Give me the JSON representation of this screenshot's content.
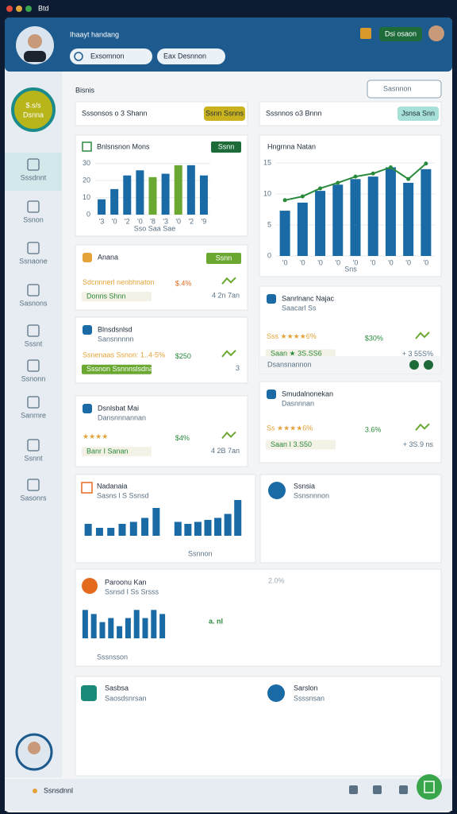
{
  "header": {
    "app": "Btd",
    "title": "Ihaayt handang",
    "search": "Exsomnon",
    "filter": "Eax Desnnon",
    "button": "Dsi osaon"
  },
  "sidebar": {
    "badge": "$.s/s",
    "badge_sub": "Dsnna",
    "items": [
      "Sssdnnt",
      "Ssnon",
      "Ssnaone",
      "Sasnons",
      "Sssnt",
      "Ssnonn",
      "Sanrnre",
      "Ssnnt",
      "Sasonrs"
    ]
  },
  "page": {
    "title": "Bisnis",
    "search": "Sasnnon"
  },
  "summary": [
    {
      "text": "Sssonsos o 3 Shann",
      "button": "Ssnn Ssnns"
    },
    {
      "text": "Sssnnos o3 Bnnn",
      "button": "Jsnsa Snn"
    }
  ],
  "charts": [
    {
      "title": "Bnlsnsnon Mons",
      "button": "Ssnn",
      "values": [
        9,
        15,
        23,
        26,
        22,
        24,
        29,
        29,
        23
      ],
      "colors": [
        "#1a6aa6",
        "#1a6aa6",
        "#1a6aa6",
        "#1a6aa6",
        "#6aa832",
        "#1a6aa6",
        "#6aa832",
        "#1a6aa6",
        "#1a6aa6"
      ],
      "categories": [
        "'3",
        "'0",
        "'2",
        "'0",
        "'8",
        "'3",
        "'0",
        "'2",
        "'9"
      ],
      "ylim": [
        0,
        35
      ],
      "yticks": [
        0,
        10,
        20,
        30
      ],
      "note": "Sso Saa Sae"
    },
    {
      "title": "Hngrnna Natan",
      "values": [
        7.3,
        8.6,
        10.5,
        11.5,
        12.4,
        12.8,
        14.3,
        11.8,
        14
      ],
      "line": [
        9,
        9.6,
        10.9,
        11.8,
        12.8,
        13.3,
        14.3,
        12.4,
        14.9
      ],
      "color": "#1a6aa6",
      "line_color": "#2a8a3c",
      "categories": [
        "'0",
        "'0",
        "'0",
        "'0",
        "'0",
        "'0",
        "'0",
        "'0",
        "'0"
      ],
      "ylim": [
        0,
        15
      ],
      "yticks": [
        0,
        5,
        10,
        15
      ],
      "note": "Sns"
    },
    {
      "title": "Nadanaia",
      "subtitle": "Sasns l S Ssnsd",
      "values": [
        3,
        2,
        2,
        3,
        3.5,
        4.5,
        7
      ],
      "values2": [
        3.5,
        3,
        3.5,
        4,
        4.5,
        5.5,
        9
      ],
      "color": "#1a6aa6",
      "ylim": [
        0,
        10
      ],
      "note": "Ssnnon"
    },
    {
      "title": "Paroonu Kan",
      "subtitle": "Ssnsd I Ss Srsss",
      "values": [
        7,
        6,
        4,
        5,
        3,
        5,
        7,
        5,
        7,
        6
      ],
      "color": "#1a6aa6",
      "ylim": [
        0,
        10
      ],
      "corner": "2.0%",
      "big": "a. nl",
      "note": "Sssnsson"
    }
  ],
  "kpis": [
    {
      "title": "Anana",
      "label": "Sdcnnnerl nenbhnaton",
      "tag": "Donns Shnn",
      "value": "$.4%",
      "color": "#e46a1e",
      "note": "4 2n 7an",
      "button": "Ssnn"
    },
    {
      "title": "Blnsdsnlsd",
      "subtitle": "Sansnnnnn",
      "label": "Ssnenaas Ssnon: 1..4-5%",
      "tag": "Sssnon Ssnnnslsdnan",
      "value": "$250",
      "color": "#2a8a3c",
      "note": "3"
    },
    {
      "title": "Dsnlsbat Mai",
      "subtitle": "Dansnnnannan",
      "label": "★★★★",
      "tag": "Banr I Sanan",
      "value": "$4%",
      "color": "#2a8a3c",
      "note": "4 2B 7an"
    },
    {
      "title": "Sanrlnanc Najac",
      "subtitle": "Saacarl Ss",
      "label": "Sss ★★★★6%",
      "tag": "Saan ★ 3S.SS6",
      "value": "$30%",
      "color": "#2a8a3c",
      "note": "+ 3 55S%",
      "footer": "Dsansnannon"
    },
    {
      "title": "Smudalnonekan",
      "subtitle": "Dasnnnan",
      "label": "Ss ★★★★6%",
      "tag": "Saan I 3.S50",
      "value": "3.6%",
      "color": "#2a8a3c",
      "note": "+ 3S.9 ns"
    }
  ],
  "cards": [
    {
      "title": "Ssnsia",
      "subtitle": "Ssnsnnnon"
    },
    {
      "title": "Sasbsa",
      "subtitle": "Saosdsnrsan"
    },
    {
      "title": "Sarslon",
      "subtitle": "Ssssnsan"
    }
  ],
  "footer": {
    "text": "Ssnsdnnl"
  }
}
